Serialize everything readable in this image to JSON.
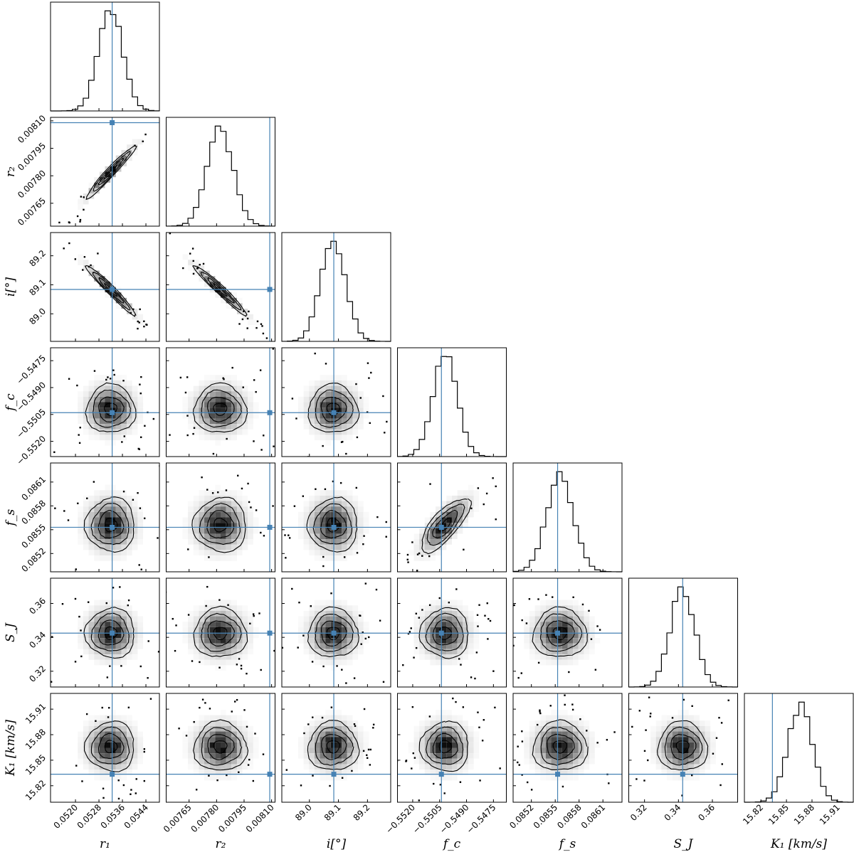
{
  "chart_data": {
    "type": "corner",
    "grid": false,
    "colors": {
      "truth": "#4682b4",
      "hist": "#000000",
      "contour": "#000000",
      "density": "#000000"
    },
    "parameters": [
      {
        "key": "r1",
        "label": "r₁",
        "range": [
          0.05115,
          0.05486
        ],
        "ticks": [
          0.052,
          0.0528,
          0.0536,
          0.0544
        ],
        "tick_labels": [
          "0.0520",
          "0.0528",
          "0.0536",
          "0.0544"
        ],
        "truth": 0.05325,
        "mean": 0.0532,
        "sd": 0.00042
      },
      {
        "key": "r2",
        "label": "r₂",
        "range": [
          0.007525,
          0.008119
        ],
        "ticks": [
          0.00765,
          0.0078,
          0.00795,
          0.0081
        ],
        "tick_labels": [
          "0.00765",
          "0.00780",
          "0.00795",
          "0.00810"
        ],
        "truth": 0.00809,
        "mean": 0.00782,
        "sd": 7.2e-05
      },
      {
        "key": "i",
        "label": "i[°]",
        "range": [
          88.905,
          89.28
        ],
        "ticks": [
          89.0,
          89.1,
          89.2
        ],
        "tick_labels": [
          "89.0",
          "89.1",
          "89.2"
        ],
        "truth": 89.084,
        "mean": 89.082,
        "sd": 0.043
      },
      {
        "key": "fc",
        "label": "f_c",
        "range": [
          -0.55285,
          -0.54678
        ],
        "ticks": [
          -0.552,
          -0.5505,
          -0.549,
          -0.5475
        ],
        "tick_labels": [
          "−0.5520",
          "−0.5505",
          "−0.5490",
          "−0.5475"
        ],
        "truth": -0.5504,
        "mean": -0.5502,
        "sd": 0.00068
      },
      {
        "key": "fs",
        "label": "f_s",
        "range": [
          0.08497,
          0.08634
        ],
        "ticks": [
          0.0852,
          0.0855,
          0.0858,
          0.0861
        ],
        "tick_labels": [
          "0.0852",
          "0.0855",
          "0.0858",
          "0.0861"
        ],
        "truth": 0.08553,
        "mean": 0.08556,
        "sd": 0.00017
      },
      {
        "key": "SJ",
        "label": "S_J",
        "range": [
          0.3107,
          0.3749
        ],
        "ticks": [
          0.32,
          0.34,
          0.36
        ],
        "tick_labels": [
          "0.32",
          "0.34",
          "0.36"
        ],
        "truth": 0.3425,
        "mean": 0.3425,
        "sd": 0.0073
      },
      {
        "key": "K1",
        "label": "K₁ [km/s]",
        "range": [
          15.8006,
          15.9285
        ],
        "ticks": [
          15.82,
          15.85,
          15.88,
          15.91
        ],
        "tick_labels": [
          "15.82",
          "15.85",
          "15.88",
          "15.91"
        ],
        "truth": 15.8335,
        "mean": 15.866,
        "sd": 0.0145
      }
    ],
    "correlations": [
      {
        "pair": [
          "r1",
          "r2"
        ],
        "rho": 0.97
      },
      {
        "pair": [
          "r1",
          "i"
        ],
        "rho": -0.97
      },
      {
        "pair": [
          "r2",
          "i"
        ],
        "rho": -0.97
      },
      {
        "pair": [
          "fc",
          "fs"
        ],
        "rho": 0.75
      }
    ],
    "bins": 20
  }
}
